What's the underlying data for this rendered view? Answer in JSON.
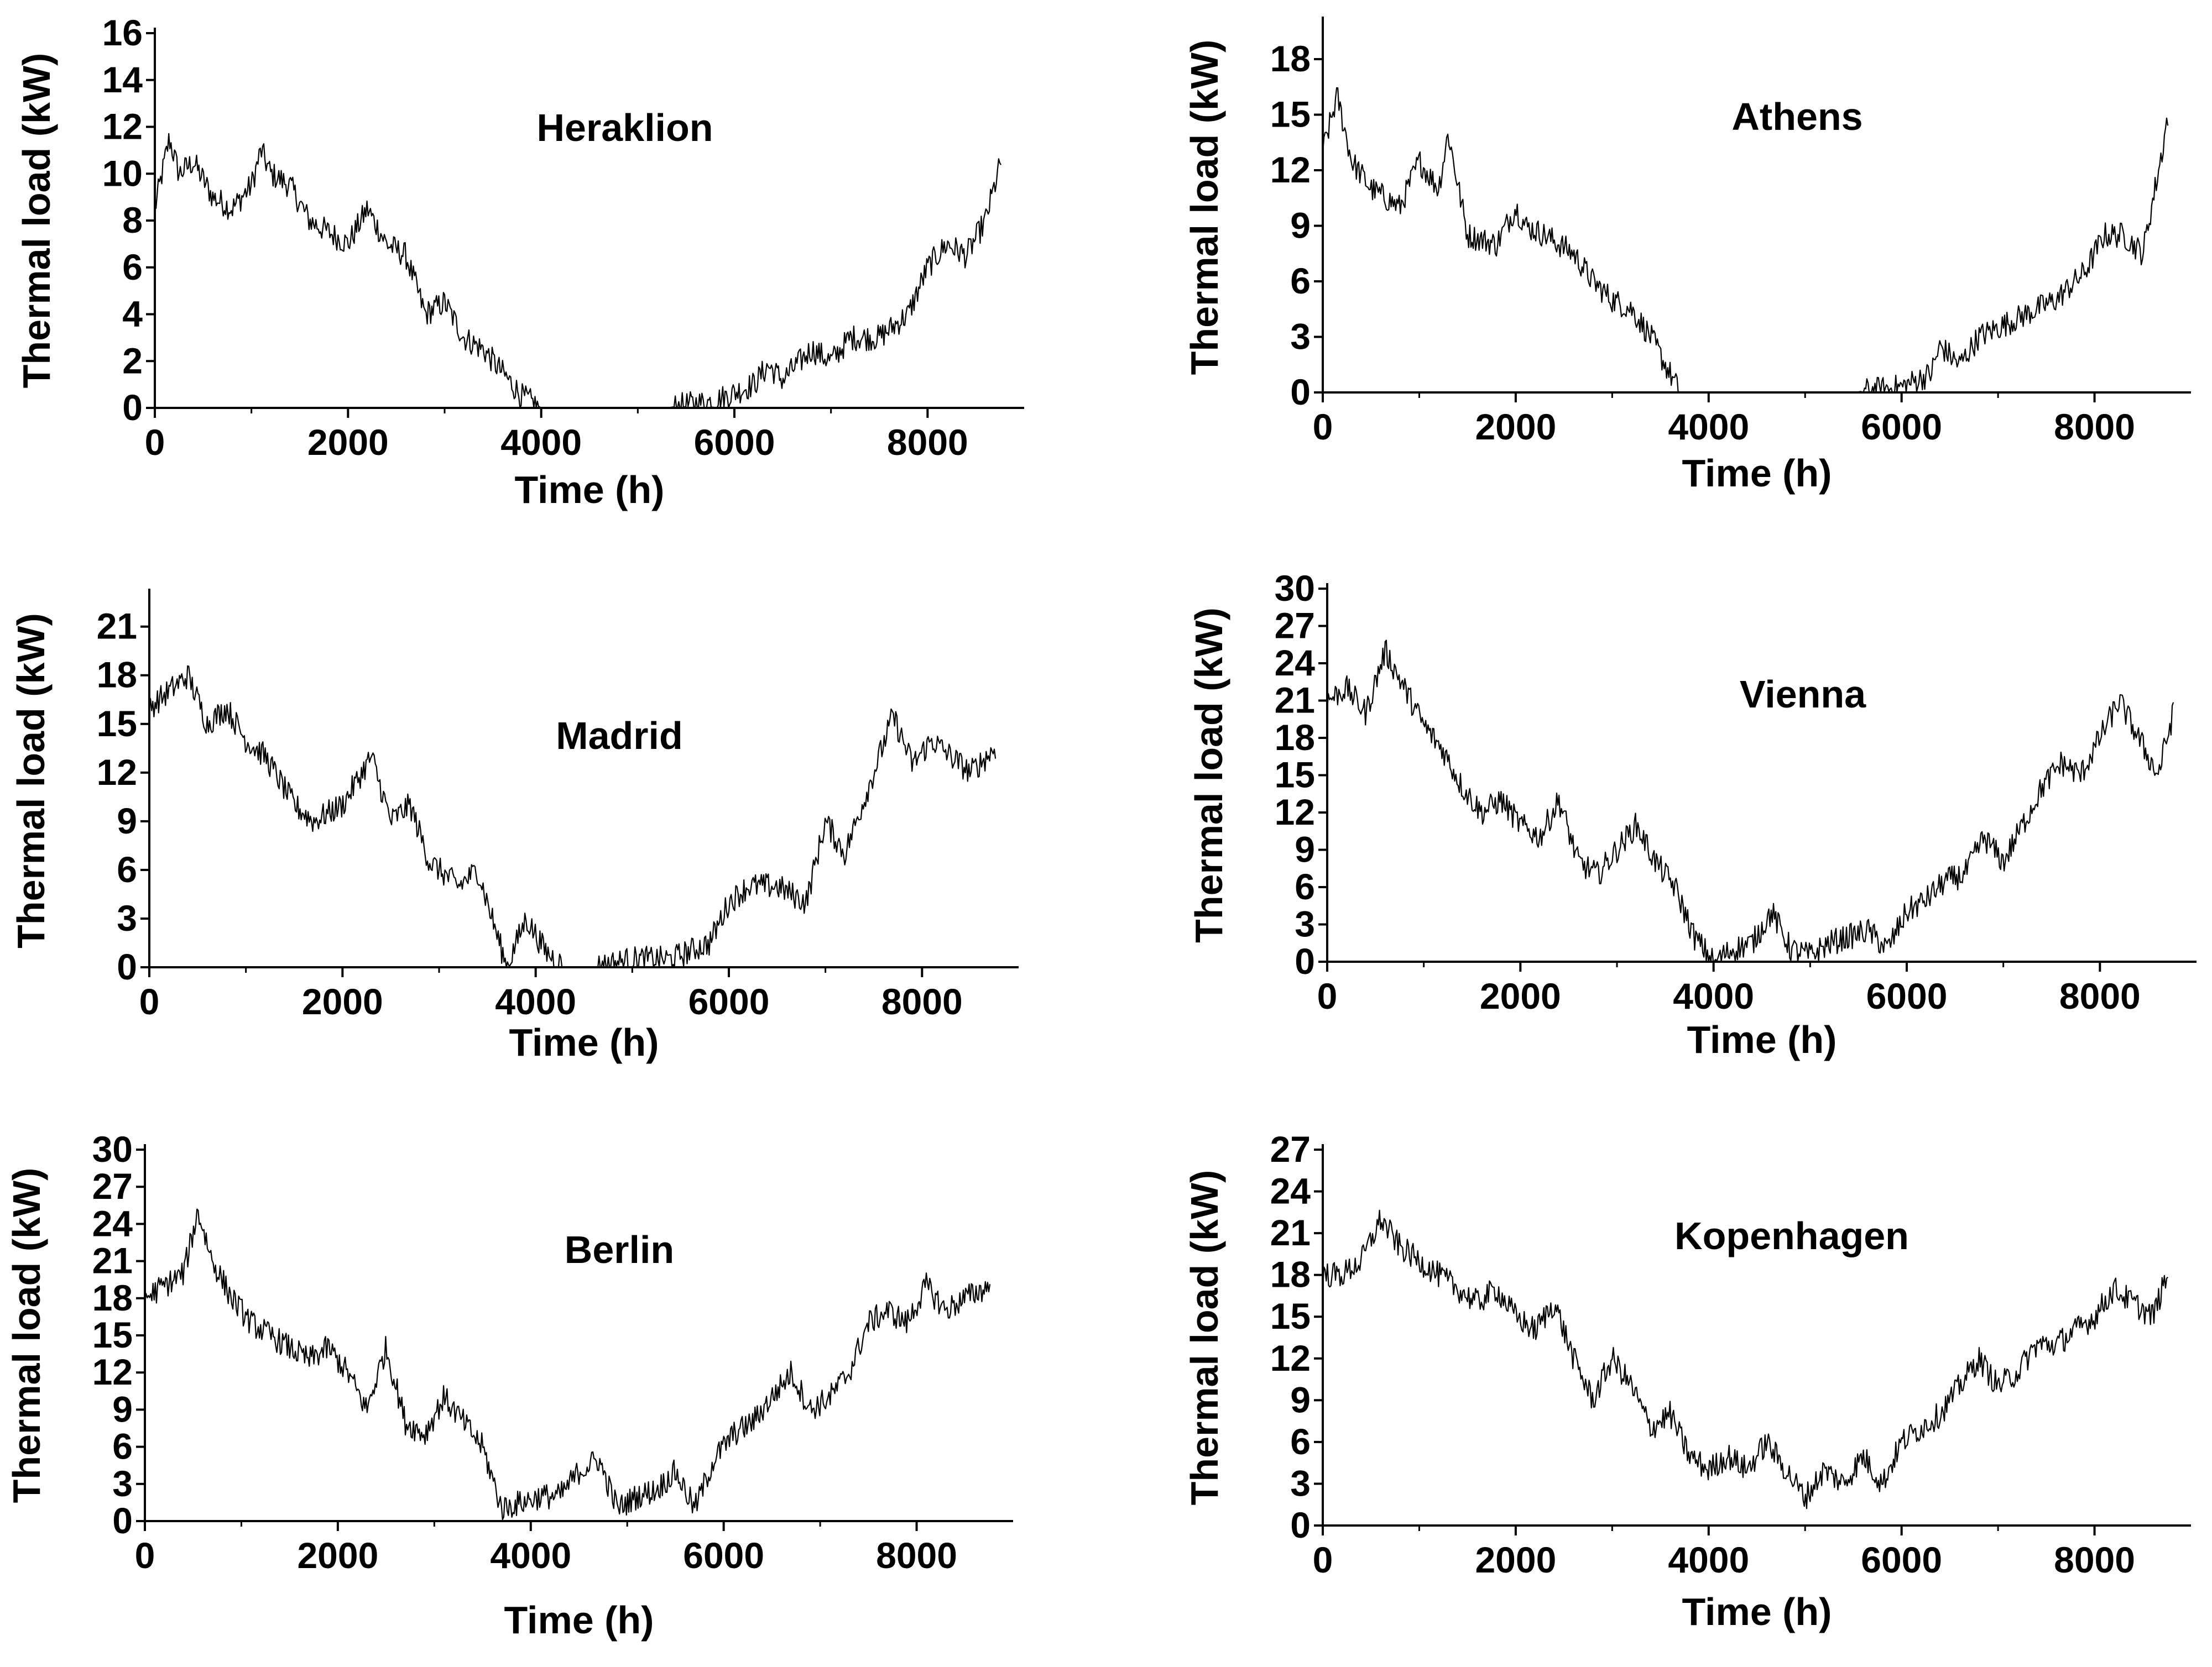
{
  "figure": {
    "background": "#ffffff",
    "line_color": "#000000"
  },
  "chart_data": [
    {
      "type": "line",
      "title": "Heraklion",
      "xlabel": "Time (h)",
      "ylabel": "Thermal load (kW)",
      "xlim": [
        0,
        9000
      ],
      "ylim": [
        0,
        16
      ],
      "x_ticks": [
        0,
        2000,
        4000,
        6000,
        8000
      ],
      "y_ticks": [
        0,
        2,
        4,
        6,
        8,
        10,
        12,
        14,
        16
      ],
      "series": [
        {
          "name": "Heraklion",
          "x": [
            0,
            150,
            250,
            400,
            600,
            800,
            1000,
            1100,
            1200,
            1400,
            1600,
            1800,
            2000,
            2200,
            2400,
            2600,
            2800,
            3000,
            3200,
            3400,
            3600,
            3800,
            4000,
            4300,
            4800,
            5300,
            5800,
            6200,
            6350,
            6500,
            6800,
            7000,
            7200,
            7500,
            7800,
            8000,
            8200,
            8400,
            8600,
            8760
          ],
          "y": [
            8.5,
            11.5,
            10,
            10.5,
            9,
            8.5,
            9.5,
            11,
            10,
            9.5,
            8,
            7.5,
            7,
            8.5,
            7,
            6.5,
            4,
            4.5,
            3,
            2.5,
            1.5,
            0.5,
            0,
            0,
            0,
            0,
            0.3,
            1,
            1.8,
            1.2,
            2.5,
            2,
            3,
            3,
            4,
            6,
            7,
            6.5,
            8,
            10.5
          ]
        }
      ]
    },
    {
      "type": "line",
      "title": "Athens",
      "xlabel": "Time (h)",
      "ylabel": "Thermal load (kW)",
      "xlim": [
        0,
        9000
      ],
      "ylim": [
        0,
        20
      ],
      "x_ticks": [
        0,
        2000,
        4000,
        6000,
        8000
      ],
      "y_ticks": [
        0,
        3,
        6,
        9,
        12,
        15,
        18
      ],
      "series": [
        {
          "name": "Athens",
          "x": [
            0,
            150,
            300,
            500,
            800,
            1000,
            1200,
            1300,
            1500,
            1800,
            2000,
            2100,
            2300,
            2600,
            2800,
            3000,
            3200,
            3400,
            3600,
            3700,
            4000,
            4500,
            5000,
            5500,
            6000,
            6300,
            6400,
            6600,
            6800,
            7200,
            7600,
            7900,
            8100,
            8300,
            8500,
            8700,
            8760
          ],
          "y": [
            13,
            16,
            12.5,
            11,
            10,
            12.5,
            11,
            14,
            8.5,
            8,
            10,
            9,
            8.5,
            7.5,
            6,
            5,
            4.5,
            3,
            1,
            0,
            0,
            0,
            0,
            0,
            0.3,
            1,
            2.5,
            1.5,
            3,
            4,
            5,
            6.5,
            8.5,
            8.5,
            7.5,
            13,
            15
          ]
        }
      ]
    },
    {
      "type": "line",
      "title": "Madrid",
      "xlabel": "Time (h)",
      "ylabel": "Thermal load (kW)",
      "xlim": [
        0,
        9000
      ],
      "ylim": [
        0,
        23
      ],
      "x_ticks": [
        0,
        2000,
        4000,
        6000,
        8000
      ],
      "y_ticks": [
        0,
        3,
        6,
        9,
        12,
        15,
        18,
        21
      ],
      "series": [
        {
          "name": "Madrid",
          "x": [
            0,
            200,
            400,
            600,
            800,
            1000,
            1200,
            1500,
            1700,
            2000,
            2300,
            2500,
            2700,
            2900,
            3200,
            3400,
            3600,
            3700,
            3900,
            4100,
            4300,
            4600,
            5000,
            5400,
            5800,
            6000,
            6200,
            6500,
            6800,
            7000,
            7200,
            7500,
            7700,
            7900,
            8100,
            8300,
            8500,
            8760
          ],
          "y": [
            16,
            17,
            18,
            15,
            16,
            14,
            13,
            10,
            9,
            10,
            13,
            9,
            10,
            6.5,
            5,
            6,
            2,
            0,
            3,
            1,
            0,
            0,
            0.5,
            0.5,
            1.5,
            4,
            5,
            5,
            4,
            9,
            7,
            12,
            15.5,
            12.5,
            14,
            13,
            12,
            13.5
          ]
        }
      ]
    },
    {
      "type": "line",
      "title": "Vienna",
      "xlabel": "Time (h)",
      "ylabel": "Thermal load (kW)",
      "xlim": [
        0,
        9000
      ],
      "ylim": [
        0,
        30
      ],
      "x_ticks": [
        0,
        2000,
        4000,
        6000,
        8000
      ],
      "y_ticks": [
        0,
        3,
        6,
        9,
        12,
        15,
        18,
        21,
        24,
        27,
        30
      ],
      "series": [
        {
          "name": "Vienna",
          "x": [
            0,
            200,
            400,
            600,
            800,
            1000,
            1200,
            1400,
            1600,
            1800,
            2000,
            2200,
            2400,
            2600,
            2800,
            3000,
            3200,
            3400,
            3600,
            3800,
            4000,
            4200,
            4400,
            4600,
            4800,
            5000,
            5200,
            5400,
            5600,
            5800,
            6000,
            6200,
            6400,
            6600,
            6800,
            7000,
            7200,
            7400,
            7600,
            7800,
            8000,
            8200,
            8400,
            8600,
            8760
          ],
          "y": [
            21,
            22,
            20,
            25,
            22,
            19,
            17,
            14,
            12,
            13,
            11,
            10,
            13,
            8,
            7,
            9,
            11,
            8,
            6,
            2,
            0,
            1,
            1.5,
            4,
            1,
            0.5,
            1.5,
            2,
            2.5,
            1,
            4,
            5,
            6.5,
            7,
            10,
            8,
            11,
            14,
            16,
            15,
            18,
            21,
            18,
            15,
            20
          ]
        }
      ]
    },
    {
      "type": "line",
      "title": "Berlin",
      "xlabel": "Time (h)",
      "ylabel": "Thermal load (kW)",
      "xlim": [
        0,
        9000
      ],
      "ylim": [
        0,
        30
      ],
      "x_ticks": [
        0,
        2000,
        4000,
        6000,
        8000
      ],
      "y_ticks": [
        0,
        3,
        6,
        9,
        12,
        15,
        18,
        21,
        24,
        27,
        30
      ],
      "series": [
        {
          "name": "Berlin",
          "x": [
            0,
            200,
            400,
            550,
            700,
            900,
            1100,
            1300,
            1500,
            1700,
            1900,
            2100,
            2300,
            2500,
            2700,
            2900,
            3100,
            3300,
            3500,
            3700,
            3900,
            4100,
            4300,
            4500,
            4700,
            4900,
            5100,
            5300,
            5500,
            5700,
            5900,
            6100,
            6300,
            6500,
            6700,
            6900,
            7100,
            7300,
            7500,
            7700,
            7900,
            8100,
            8300,
            8500,
            8760
          ],
          "y": [
            18,
            19,
            20,
            25,
            21,
            18,
            16,
            15,
            14,
            13,
            14,
            12,
            9,
            14,
            8,
            7,
            10,
            8,
            6,
            1,
            1.5,
            2,
            2,
            4,
            5,
            1,
            2,
            2.5,
            4,
            1,
            5,
            7,
            8,
            10,
            12,
            9,
            10,
            12,
            16,
            17,
            16,
            19,
            17,
            18,
            19
          ]
        }
      ]
    },
    {
      "type": "line",
      "title": "Kopenhagen",
      "xlabel": "Time (h)",
      "ylabel": "Thermal load (kW)",
      "xlim": [
        0,
        9000
      ],
      "ylim": [
        0,
        27
      ],
      "x_ticks": [
        0,
        2000,
        4000,
        6000,
        8000
      ],
      "y_ticks": [
        0,
        3,
        6,
        9,
        12,
        15,
        18,
        21,
        24,
        27
      ],
      "series": [
        {
          "name": "Kopenhagen",
          "x": [
            0,
            200,
            400,
            600,
            800,
            1000,
            1200,
            1400,
            1600,
            1800,
            2000,
            2200,
            2400,
            2600,
            2800,
            3000,
            3200,
            3400,
            3600,
            3800,
            4000,
            4200,
            4400,
            4600,
            4800,
            5000,
            5200,
            5400,
            5600,
            5800,
            6000,
            6200,
            6400,
            6600,
            6800,
            7000,
            7200,
            7400,
            7600,
            7800,
            8000,
            8200,
            8400,
            8600,
            8760
          ],
          "y": [
            18,
            18,
            19,
            22,
            20,
            19,
            18,
            17,
            16,
            17,
            15,
            14,
            16,
            12,
            9,
            12,
            10,
            7,
            8,
            5,
            4,
            5,
            4,
            6,
            4,
            2,
            4,
            3,
            5,
            3,
            6,
            7,
            8,
            10,
            12,
            10,
            11,
            13,
            13,
            14,
            15,
            17,
            16,
            15,
            18
          ]
        }
      ]
    }
  ]
}
